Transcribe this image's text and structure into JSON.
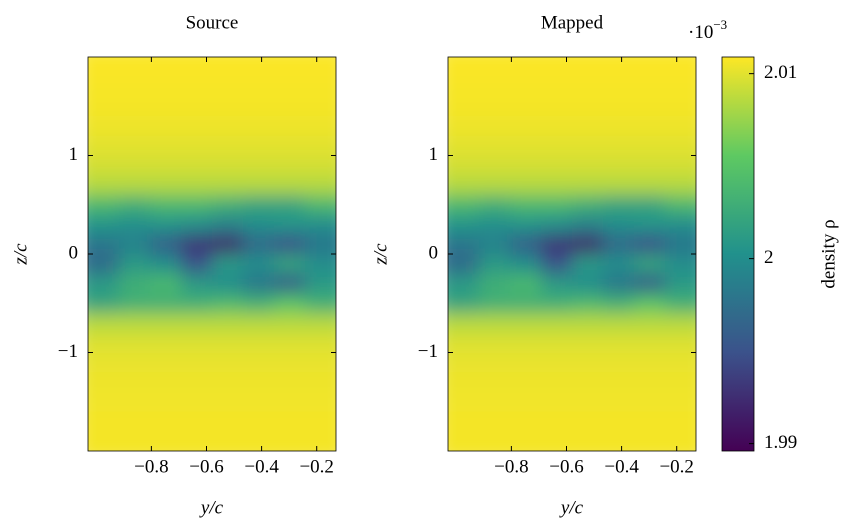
{
  "chart_data": [
    {
      "type": "heatmap",
      "title": "Source",
      "xlabel": "y/c",
      "ylabel": "z/c",
      "colormap": "viridis",
      "xlim": [
        -1.03,
        -0.13
      ],
      "ylim": [
        -2,
        2
      ],
      "xticks": [
        {
          "value": -0.8,
          "label": "−0.8"
        },
        {
          "value": -0.6,
          "label": "−0.6"
        },
        {
          "value": -0.4,
          "label": "−0.4"
        },
        {
          "value": -0.2,
          "label": "−0.2"
        }
      ],
      "yticks": [
        {
          "value": -1,
          "label": "−1"
        },
        0,
        1
      ],
      "x": [
        -0.974,
        -0.861,
        -0.749,
        -0.636,
        -0.524,
        -0.411,
        -0.299,
        -0.186
      ],
      "y": [
        1.9,
        1.7,
        1.5,
        1.3,
        1.1,
        0.9,
        0.7,
        0.5,
        0.3,
        0.1,
        -0.1,
        -0.3,
        -0.5,
        -0.7,
        -0.9,
        -1.1,
        -1.3,
        -1.5,
        -1.7,
        -1.9
      ],
      "values": [
        [
          2.0108,
          2.0108,
          2.0108,
          2.0108,
          2.0108,
          2.0108,
          2.0108,
          2.0108
        ],
        [
          2.0107,
          2.0107,
          2.0107,
          2.0107,
          2.0107,
          2.0107,
          2.0107,
          2.0107
        ],
        [
          2.0106,
          2.0106,
          2.0106,
          2.0106,
          2.0106,
          2.0106,
          2.0106,
          2.0106
        ],
        [
          2.0104,
          2.0104,
          2.0104,
          2.0104,
          2.0104,
          2.0104,
          2.0104,
          2.0104
        ],
        [
          2.01,
          2.01,
          2.01,
          2.01,
          2.01,
          2.01,
          2.01,
          2.01
        ],
        [
          2.0095,
          2.0095,
          2.0095,
          2.0095,
          2.0095,
          2.0095,
          2.0095,
          2.0095
        ],
        [
          2.0085,
          2.0085,
          2.0085,
          2.0085,
          2.0085,
          2.0085,
          2.0085,
          2.0085
        ],
        [
          2.004,
          2.003,
          2.004,
          2.004,
          2.003,
          2.002,
          2.002,
          2.004
        ],
        [
          2.0005,
          2.0,
          2.0005,
          2.0,
          1.999,
          2.0,
          2.0005,
          2.0
        ],
        [
          1.998,
          1.999,
          1.996,
          1.993,
          1.992,
          1.997,
          1.995,
          1.998
        ],
        [
          1.997,
          2.001,
          2.0,
          1.995,
          2.001,
          2.0,
          2.002,
          2.0
        ],
        [
          2.001,
          2.003,
          2.004,
          2.001,
          2.0,
          1.998,
          1.996,
          2.001
        ],
        [
          2.002,
          2.003,
          2.003,
          2.003,
          2.004,
          2.003,
          2.005,
          2.003
        ],
        [
          2.0085,
          2.0085,
          2.0085,
          2.0085,
          2.0085,
          2.0085,
          2.0085,
          2.0085
        ],
        [
          2.0098,
          2.0098,
          2.0098,
          2.0098,
          2.0098,
          2.0098,
          2.0098,
          2.0098
        ],
        [
          2.0102,
          2.0102,
          2.0102,
          2.0102,
          2.0102,
          2.0102,
          2.0102,
          2.0102
        ],
        [
          2.0104,
          2.0104,
          2.0104,
          2.0104,
          2.0104,
          2.0104,
          2.0104,
          2.0104
        ],
        [
          2.0105,
          2.0105,
          2.0105,
          2.0105,
          2.0105,
          2.0105,
          2.0105,
          2.0105
        ],
        [
          2.0106,
          2.0106,
          2.0106,
          2.0106,
          2.0106,
          2.0106,
          2.0106,
          2.0106
        ],
        [
          2.0106,
          2.0106,
          2.0106,
          2.0106,
          2.0106,
          2.0106,
          2.0106,
          2.0106
        ]
      ]
    },
    {
      "type": "heatmap",
      "title": "Mapped",
      "xlabel": "y/c",
      "ylabel": "z/c",
      "colormap": "viridis",
      "xlim": [
        -1.03,
        -0.13
      ],
      "ylim": [
        -2,
        2
      ],
      "xticks": [
        {
          "value": -0.8,
          "label": "−0.8"
        },
        {
          "value": -0.6,
          "label": "−0.6"
        },
        {
          "value": -0.4,
          "label": "−0.4"
        },
        {
          "value": -0.2,
          "label": "−0.2"
        }
      ],
      "yticks": [
        {
          "value": -1,
          "label": "−1"
        },
        0,
        1
      ],
      "x": [
        -0.974,
        -0.861,
        -0.749,
        -0.636,
        -0.524,
        -0.411,
        -0.299,
        -0.186
      ],
      "y": [
        1.9,
        1.7,
        1.5,
        1.3,
        1.1,
        0.9,
        0.7,
        0.5,
        0.3,
        0.1,
        -0.1,
        -0.3,
        -0.5,
        -0.7,
        -0.9,
        -1.1,
        -1.3,
        -1.5,
        -1.7,
        -1.9
      ],
      "values": [
        [
          2.0108,
          2.0108,
          2.0108,
          2.0108,
          2.0108,
          2.0108,
          2.0108,
          2.0108
        ],
        [
          2.0107,
          2.0107,
          2.0107,
          2.0107,
          2.0107,
          2.0107,
          2.0107,
          2.0107
        ],
        [
          2.0106,
          2.0106,
          2.0106,
          2.0106,
          2.0106,
          2.0106,
          2.0106,
          2.0106
        ],
        [
          2.0104,
          2.0104,
          2.0104,
          2.0104,
          2.0104,
          2.0104,
          2.0104,
          2.0104
        ],
        [
          2.01,
          2.01,
          2.01,
          2.01,
          2.01,
          2.01,
          2.01,
          2.01
        ],
        [
          2.0095,
          2.0095,
          2.0095,
          2.0095,
          2.0095,
          2.0095,
          2.0095,
          2.0095
        ],
        [
          2.0085,
          2.0085,
          2.0085,
          2.0085,
          2.0085,
          2.0085,
          2.0085,
          2.0085
        ],
        [
          2.004,
          2.003,
          2.004,
          2.004,
          2.003,
          2.002,
          2.002,
          2.004
        ],
        [
          2.0005,
          2.0,
          2.0005,
          2.0,
          1.999,
          2.0,
          2.0005,
          2.0
        ],
        [
          1.998,
          1.999,
          1.996,
          1.993,
          1.992,
          1.997,
          1.995,
          1.998
        ],
        [
          1.997,
          2.001,
          2.0,
          1.995,
          2.001,
          2.0,
          2.002,
          2.0
        ],
        [
          2.001,
          2.003,
          2.004,
          2.001,
          2.0,
          1.998,
          1.996,
          2.001
        ],
        [
          2.002,
          2.003,
          2.003,
          2.003,
          2.004,
          2.003,
          2.005,
          2.003
        ],
        [
          2.0085,
          2.0085,
          2.0085,
          2.0085,
          2.0085,
          2.0085,
          2.0085,
          2.0085
        ],
        [
          2.0098,
          2.0098,
          2.0098,
          2.0098,
          2.0098,
          2.0098,
          2.0098,
          2.0098
        ],
        [
          2.0102,
          2.0102,
          2.0102,
          2.0102,
          2.0102,
          2.0102,
          2.0102,
          2.0102
        ],
        [
          2.0104,
          2.0104,
          2.0104,
          2.0104,
          2.0104,
          2.0104,
          2.0104,
          2.0104
        ],
        [
          2.0105,
          2.0105,
          2.0105,
          2.0105,
          2.0105,
          2.0105,
          2.0105,
          2.0105
        ],
        [
          2.0106,
          2.0106,
          2.0106,
          2.0106,
          2.0106,
          2.0106,
          2.0106,
          2.0106
        ],
        [
          2.0106,
          2.0106,
          2.0106,
          2.0106,
          2.0106,
          2.0106,
          2.0106,
          2.0106
        ]
      ],
      "colorbar": {
        "label": "density  ρ",
        "lim": [
          1.9896,
          2.0109
        ],
        "ticks": [
          1.99,
          2,
          2.01
        ],
        "multiplier": {
          "base": "·10",
          "exponent": "−3"
        }
      }
    }
  ]
}
